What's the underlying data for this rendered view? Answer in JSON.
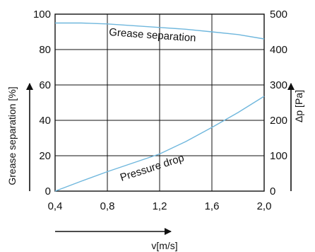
{
  "chart_data": {
    "type": "line",
    "x_axis": {
      "label": "v[m/s]",
      "range": [
        0.4,
        2.0
      ],
      "ticks": [
        0.4,
        0.8,
        1.2,
        1.6,
        2.0
      ],
      "tick_labels": [
        "0,4",
        "0,8",
        "1,2",
        "1,6",
        "2,0"
      ]
    },
    "y_axis_left": {
      "label": "Grease separation [%]",
      "range": [
        0,
        100
      ],
      "ticks": [
        0,
        20,
        40,
        60,
        80,
        100
      ],
      "tick_labels": [
        "0",
        "20",
        "40",
        "60",
        "80",
        "100"
      ]
    },
    "y_axis_right": {
      "label": "Δp [Pa]",
      "range": [
        0,
        500
      ],
      "ticks": [
        0,
        100,
        200,
        300,
        400,
        500
      ],
      "tick_labels": [
        "0",
        "100",
        "200",
        "300",
        "400",
        "500"
      ]
    },
    "grid": true,
    "series": [
      {
        "name": "Grease separation",
        "axis": "left",
        "color": "#6fb7dd",
        "x": [
          0.4,
          0.6,
          0.8,
          1.0,
          1.2,
          1.4,
          1.6,
          1.8,
          2.0
        ],
        "y": [
          95,
          95,
          94.5,
          93.5,
          92.5,
          91.5,
          90,
          88.5,
          86
        ]
      },
      {
        "name": "Pressure drop",
        "axis": "right",
        "color": "#6fb7dd",
        "x": [
          0.4,
          0.6,
          0.8,
          1.0,
          1.2,
          1.4,
          1.6,
          1.8,
          2.0
        ],
        "y": [
          0,
          28,
          55,
          80,
          105,
          140,
          180,
          222,
          268
        ]
      }
    ]
  }
}
